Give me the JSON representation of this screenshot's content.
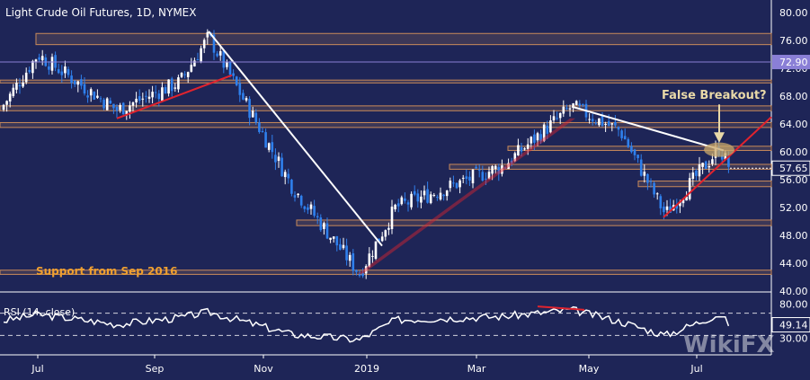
{
  "title": "Light Crude Oil Futures, 1D, NYMEX",
  "colors": {
    "background": "#1e2557",
    "bull": "#ffffff",
    "bear": "#2f80ed",
    "zone": "#c98a5a",
    "trend_red": "#e0232e",
    "trend_white": "#ffffff",
    "annotation": "#f0a030",
    "badge_purple": "#8a7fd6",
    "badge_last": "#ffffff"
  },
  "chart_data": [
    {
      "type": "candlestick",
      "title": "Light Crude Oil Futures, 1D, NYMEX",
      "x_ticks": [
        "Jul",
        "Sep",
        "Nov",
        "2019",
        "Mar",
        "May",
        "Jul"
      ],
      "y_ticks": [
        "80.00",
        "76.00",
        "72.00",
        "68.00",
        "64.00",
        "60.00",
        "56.00",
        "52.00",
        "48.00",
        "44.00",
        "40.00"
      ],
      "ylim": [
        40,
        80
      ],
      "last_price": "57.65",
      "marked_level": "72.90",
      "key_points": [
        {
          "date": "Jun 2018",
          "close": 66
        },
        {
          "date": "Jul 2018",
          "close": 74
        },
        {
          "date": "Aug 2018",
          "close": 66
        },
        {
          "date": "Sep 2018",
          "close": 70
        },
        {
          "date": "Oct 2018",
          "close": 76.5
        },
        {
          "date": "Nov 2018",
          "close": 55
        },
        {
          "date": "Dec 2018",
          "close": 42.5
        },
        {
          "date": "Jan 2019",
          "close": 52
        },
        {
          "date": "Mar 2019",
          "close": 58
        },
        {
          "date": "Apr 2019",
          "close": 66.5
        },
        {
          "date": "May 2019",
          "close": 63
        },
        {
          "date": "Jun 2019",
          "close": 51
        },
        {
          "date": "Jul 2019",
          "close": 60.5
        },
        {
          "date": "Jul 2019",
          "close": 57.65
        }
      ],
      "zones": [
        {
          "low": 75.4,
          "high": 77.0
        },
        {
          "low": 69.9,
          "high": 70.3
        },
        {
          "low": 65.9,
          "high": 66.6
        },
        {
          "low": 63.5,
          "high": 64.2
        },
        {
          "low": 60.2,
          "high": 60.8
        },
        {
          "low": 57.5,
          "high": 58.2
        },
        {
          "low": 55.0,
          "high": 55.8
        },
        {
          "low": 49.4,
          "high": 50.2
        },
        {
          "low": 42.4,
          "high": 43.0
        }
      ],
      "annotations": [
        "Support from Sep 2016",
        "False Breakout?"
      ]
    },
    {
      "type": "line",
      "title": "RSI (14, close)",
      "y_ticks": [
        "80.00",
        "49.14",
        "30.00"
      ],
      "ylim": [
        0,
        100
      ],
      "last_value": "49.14",
      "reference_levels": [
        70,
        30
      ]
    }
  ],
  "watermark": "WikiFX"
}
